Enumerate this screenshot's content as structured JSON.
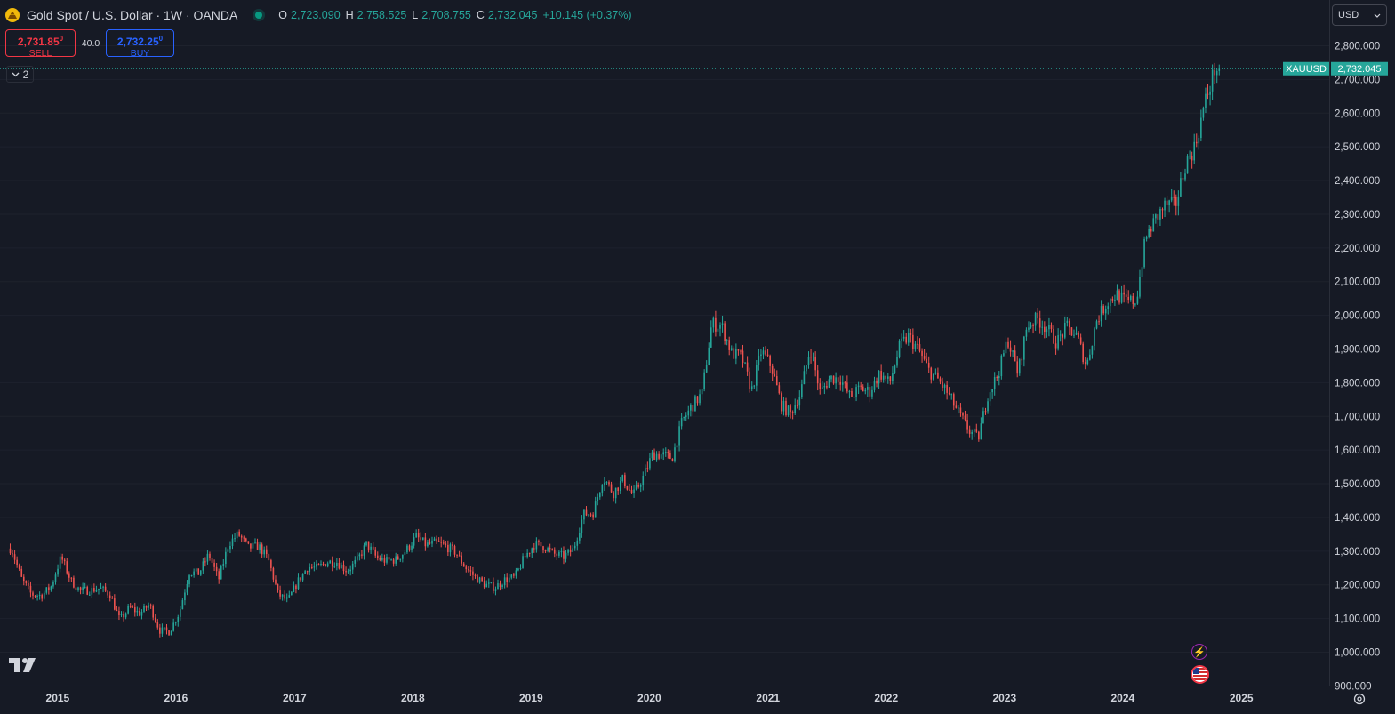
{
  "header": {
    "symbol_title": "Gold Spot / U.S. Dollar · 1W · OANDA",
    "ohlc": [
      {
        "key": "O",
        "value": "2,723.090"
      },
      {
        "key": "H",
        "value": "2,758.525"
      },
      {
        "key": "L",
        "value": "2,708.755"
      },
      {
        "key": "C",
        "value": "2,732.045"
      }
    ],
    "change": "+10.145 (+0.37%)"
  },
  "trade": {
    "sell_price": "2,731.85",
    "sell_price_sup": "0",
    "sell_label": "SELL",
    "spread": "40.0",
    "buy_price": "2,732.25",
    "buy_price_sup": "0",
    "buy_label": "BUY"
  },
  "indicators": {
    "collapsed_count": "2"
  },
  "currency": {
    "selected": "USD"
  },
  "last_price": {
    "symbol": "XAUUSD",
    "value": "2,732.045"
  },
  "colors": {
    "background": "#161a25",
    "up": "#26a69a",
    "down": "#ef5350",
    "grid": "#1e222d"
  },
  "icons": [
    "tradingview-logo-icon",
    "lightning-event-icon",
    "us-flag-event-icon",
    "settings-gear-icon",
    "chevron-down-icon"
  ],
  "chart_data": {
    "type": "candlestick",
    "timeframe": "1W",
    "y_ticks": [
      "2,800.000",
      "2,700.000",
      "2,600.000",
      "2,500.000",
      "2,400.000",
      "2,300.000",
      "2,200.000",
      "2,100.000",
      "2,000.000",
      "1,900.000",
      "1,800.000",
      "1,700.000",
      "1,600.000",
      "1,500.000",
      "1,400.000",
      "1,300.000",
      "1,200.000",
      "1,100.000",
      "1,000.000",
      "900.000"
    ],
    "x_ticks": [
      "2015",
      "2016",
      "2017",
      "2018",
      "2019",
      "2020",
      "2021",
      "2022",
      "2023",
      "2024",
      "2025"
    ],
    "ylim": [
      890,
      2830
    ],
    "xlim": [
      "2014-07-07",
      "2025-09-29"
    ],
    "last_close": 2732.045,
    "series": [
      {
        "name": "XAUUSD",
        "points": [
          [
            "2014-08",
            1308
          ],
          [
            "2014-09",
            1218
          ],
          [
            "2014-10",
            1172
          ],
          [
            "2014-11",
            1168
          ],
          [
            "2014-12",
            1195
          ],
          [
            "2015-01",
            1283
          ],
          [
            "2015-02",
            1212
          ],
          [
            "2015-03",
            1183
          ],
          [
            "2015-04",
            1184
          ],
          [
            "2015-05",
            1190
          ],
          [
            "2015-06",
            1172
          ],
          [
            "2015-07",
            1095
          ],
          [
            "2015-08",
            1133
          ],
          [
            "2015-09",
            1115
          ],
          [
            "2015-10",
            1142
          ],
          [
            "2015-11",
            1065
          ],
          [
            "2015-12",
            1061
          ],
          [
            "2016-01",
            1118
          ],
          [
            "2016-02",
            1238
          ],
          [
            "2016-03",
            1234
          ],
          [
            "2016-04",
            1291
          ],
          [
            "2016-05",
            1215
          ],
          [
            "2016-06",
            1322
          ],
          [
            "2016-07",
            1351
          ],
          [
            "2016-08",
            1310
          ],
          [
            "2016-09",
            1316
          ],
          [
            "2016-10",
            1277
          ],
          [
            "2016-11",
            1172
          ],
          [
            "2016-12",
            1152
          ],
          [
            "2017-01",
            1211
          ],
          [
            "2017-02",
            1254
          ],
          [
            "2017-03",
            1249
          ],
          [
            "2017-04",
            1268
          ],
          [
            "2017-05",
            1268
          ],
          [
            "2017-06",
            1242
          ],
          [
            "2017-07",
            1269
          ],
          [
            "2017-08",
            1322
          ],
          [
            "2017-09",
            1280
          ],
          [
            "2017-10",
            1271
          ],
          [
            "2017-11",
            1275
          ],
          [
            "2017-12",
            1303
          ],
          [
            "2018-01",
            1343
          ],
          [
            "2018-02",
            1318
          ],
          [
            "2018-03",
            1325
          ],
          [
            "2018-04",
            1315
          ],
          [
            "2018-05",
            1298
          ],
          [
            "2018-06",
            1253
          ],
          [
            "2018-07",
            1224
          ],
          [
            "2018-08",
            1201
          ],
          [
            "2018-09",
            1192
          ],
          [
            "2018-10",
            1215
          ],
          [
            "2018-11",
            1222
          ],
          [
            "2018-12",
            1282
          ],
          [
            "2019-01",
            1321
          ],
          [
            "2019-02",
            1313
          ],
          [
            "2019-03",
            1292
          ],
          [
            "2019-04",
            1284
          ],
          [
            "2019-05",
            1305
          ],
          [
            "2019-06",
            1409
          ],
          [
            "2019-07",
            1414
          ],
          [
            "2019-08",
            1520
          ],
          [
            "2019-09",
            1472
          ],
          [
            "2019-10",
            1513
          ],
          [
            "2019-11",
            1464
          ],
          [
            "2019-12",
            1517
          ],
          [
            "2020-01",
            1589
          ],
          [
            "2020-02",
            1585
          ],
          [
            "2020-03",
            1577
          ],
          [
            "2020-04",
            1686
          ],
          [
            "2020-05",
            1730
          ],
          [
            "2020-06",
            1768
          ],
          [
            "2020-07",
            1975
          ],
          [
            "2020-08",
            1968
          ],
          [
            "2020-09",
            1886
          ],
          [
            "2020-10",
            1878
          ],
          [
            "2020-11",
            1776
          ],
          [
            "2020-12",
            1895
          ],
          [
            "2021-01",
            1848
          ],
          [
            "2021-02",
            1734
          ],
          [
            "2021-03",
            1708
          ],
          [
            "2021-04",
            1769
          ],
          [
            "2021-05",
            1906
          ],
          [
            "2021-06",
            1770
          ],
          [
            "2021-07",
            1814
          ],
          [
            "2021-08",
            1813
          ],
          [
            "2021-09",
            1757
          ],
          [
            "2021-10",
            1783
          ],
          [
            "2021-11",
            1774
          ],
          [
            "2021-12",
            1829
          ],
          [
            "2022-01",
            1797
          ],
          [
            "2022-02",
            1909
          ],
          [
            "2022-03",
            1937
          ],
          [
            "2022-04",
            1896
          ],
          [
            "2022-05",
            1837
          ],
          [
            "2022-06",
            1807
          ],
          [
            "2022-07",
            1766
          ],
          [
            "2022-08",
            1711
          ],
          [
            "2022-09",
            1660
          ],
          [
            "2022-10",
            1633
          ],
          [
            "2022-11",
            1768
          ],
          [
            "2022-12",
            1824
          ],
          [
            "2023-01",
            1928
          ],
          [
            "2023-02",
            1827
          ],
          [
            "2023-03",
            1969
          ],
          [
            "2023-04",
            1990
          ],
          [
            "2023-05",
            1962
          ],
          [
            "2023-06",
            1919
          ],
          [
            "2023-07",
            1965
          ],
          [
            "2023-08",
            1940
          ],
          [
            "2023-09",
            1849
          ],
          [
            "2023-10",
            1984
          ],
          [
            "2023-11",
            2036
          ],
          [
            "2023-12",
            2063
          ],
          [
            "2024-01",
            2039
          ],
          [
            "2024-02",
            2044
          ],
          [
            "2024-03",
            2229
          ],
          [
            "2024-04",
            2286
          ],
          [
            "2024-05",
            2327
          ],
          [
            "2024-06",
            2326
          ],
          [
            "2024-07",
            2447
          ],
          [
            "2024-08",
            2503
          ],
          [
            "2024-09",
            2634
          ],
          [
            "2024-10",
            2732
          ]
        ]
      }
    ]
  }
}
